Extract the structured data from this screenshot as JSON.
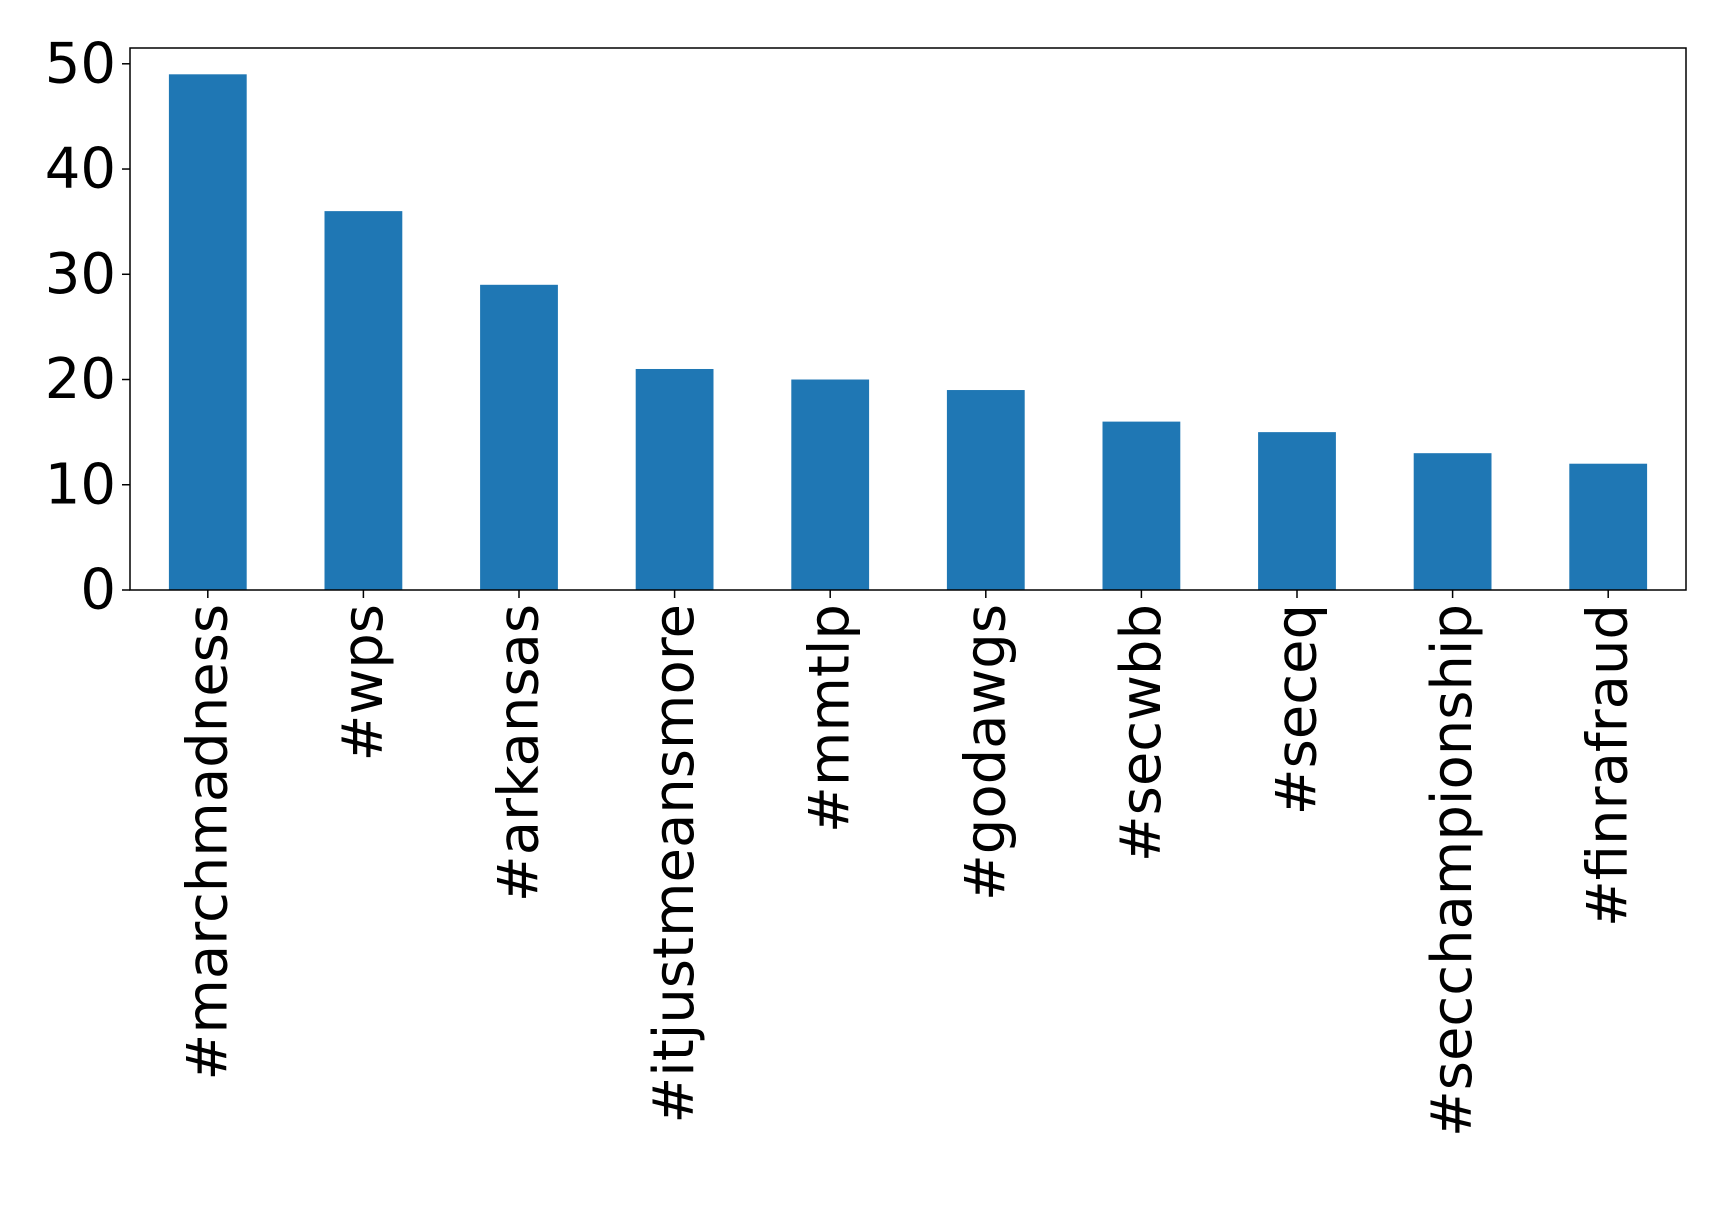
{
  "chart_data": {
    "type": "bar",
    "title": "",
    "xlabel": "",
    "ylabel": "",
    "categories": [
      "#marchmadness",
      "#wps",
      "#arkansas",
      "#itjustmeansmore",
      "#mmtlp",
      "#godawgs",
      "#secwbb",
      "#seceq",
      "#secchampionship",
      "#finrafraud"
    ],
    "values": [
      49,
      36,
      29,
      21,
      20,
      19,
      16,
      15,
      13,
      12
    ],
    "ylim": [
      0,
      51.5
    ],
    "yticks": [
      0,
      10,
      20,
      30,
      40,
      50
    ],
    "grid": false,
    "legend": "none",
    "bar_color": "#1f77b4"
  }
}
